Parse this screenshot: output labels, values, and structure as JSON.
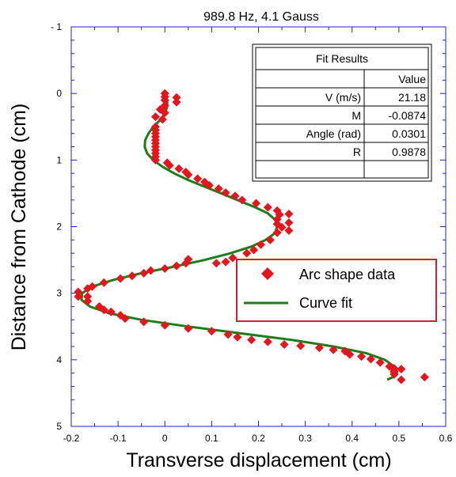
{
  "chart_data": {
    "type": "scatter",
    "title": "989.8 Hz, 4.1 Gauss",
    "xlabel": "Transverse displacement (cm)",
    "ylabel": "Distance from Cathode (cm)",
    "xlim": [
      -0.2,
      0.6
    ],
    "ylim": [
      -1,
      5
    ],
    "y_inverted": true,
    "x_ticks": [
      "-0.2",
      "-0.1",
      "0",
      "0.1",
      "0.2",
      "0.3",
      "0.4",
      "0.5",
      "0.6"
    ],
    "y_ticks": [
      "- 1",
      "0",
      "1",
      "2",
      "3",
      "4",
      "5"
    ],
    "legend_position": "right",
    "series": [
      {
        "name": "Arc shape data",
        "kind": "scatter",
        "marker": "diamond",
        "color": "#e8141b",
        "points": [
          [
            0.0,
            0.0
          ],
          [
            0.0,
            0.05
          ],
          [
            0.025,
            0.06
          ],
          [
            0.0,
            0.1
          ],
          [
            0.025,
            0.13
          ],
          [
            0.0,
            0.18
          ],
          [
            -0.01,
            0.24
          ],
          [
            0.0,
            0.29
          ],
          [
            -0.02,
            0.35
          ],
          [
            -0.005,
            0.39
          ],
          [
            -0.02,
            0.5
          ],
          [
            -0.02,
            0.55
          ],
          [
            -0.02,
            0.6
          ],
          [
            -0.02,
            0.65
          ],
          [
            -0.02,
            0.7
          ],
          [
            -0.02,
            0.75
          ],
          [
            -0.02,
            0.8
          ],
          [
            -0.02,
            0.85
          ],
          [
            -0.02,
            0.9
          ],
          [
            -0.02,
            0.95
          ],
          [
            -0.02,
            1.0
          ],
          [
            0.005,
            1.04
          ],
          [
            0.01,
            1.08
          ],
          [
            0.03,
            1.13
          ],
          [
            0.045,
            1.18
          ],
          [
            0.05,
            1.22
          ],
          [
            0.07,
            1.28
          ],
          [
            0.085,
            1.33
          ],
          [
            0.095,
            1.38
          ],
          [
            0.115,
            1.43
          ],
          [
            0.13,
            1.49
          ],
          [
            0.15,
            1.54
          ],
          [
            0.165,
            1.6
          ],
          [
            0.195,
            1.65
          ],
          [
            0.22,
            1.71
          ],
          [
            0.24,
            1.76
          ],
          [
            0.265,
            1.81
          ],
          [
            0.245,
            1.82
          ],
          [
            0.24,
            1.89
          ],
          [
            0.265,
            1.94
          ],
          [
            0.24,
            1.96
          ],
          [
            0.25,
            2.01
          ],
          [
            0.265,
            2.06
          ],
          [
            0.24,
            2.09
          ],
          [
            0.225,
            2.2
          ],
          [
            0.205,
            2.27
          ],
          [
            0.19,
            2.35
          ],
          [
            0.175,
            2.4
          ],
          [
            0.145,
            2.47
          ],
          [
            0.13,
            2.53
          ],
          [
            0.11,
            2.55
          ],
          [
            0.05,
            2.49
          ],
          [
            0.045,
            2.55
          ],
          [
            0.025,
            2.59
          ],
          [
            0.0,
            2.63
          ],
          [
            -0.03,
            2.66
          ],
          [
            -0.045,
            2.7
          ],
          [
            -0.07,
            2.74
          ],
          [
            -0.095,
            2.78
          ],
          [
            -0.13,
            2.84
          ],
          [
            -0.155,
            2.9
          ],
          [
            -0.165,
            2.93
          ],
          [
            -0.185,
            2.98
          ],
          [
            -0.185,
            3.05
          ],
          [
            -0.165,
            3.05
          ],
          [
            -0.165,
            3.12
          ],
          [
            -0.14,
            3.2
          ],
          [
            -0.13,
            3.25
          ],
          [
            -0.115,
            3.28
          ],
          [
            -0.095,
            3.33
          ],
          [
            -0.085,
            3.38
          ],
          [
            -0.045,
            3.43
          ],
          [
            0.0,
            3.48
          ],
          [
            0.05,
            3.53
          ],
          [
            0.1,
            3.57
          ],
          [
            0.135,
            3.62
          ],
          [
            0.155,
            3.66
          ],
          [
            0.185,
            3.7
          ],
          [
            0.22,
            3.73
          ],
          [
            0.255,
            3.77
          ],
          [
            0.29,
            3.79
          ],
          [
            0.33,
            3.82
          ],
          [
            0.36,
            3.85
          ],
          [
            0.385,
            3.87
          ],
          [
            0.395,
            3.92
          ],
          [
            0.42,
            3.95
          ],
          [
            0.44,
            3.99
          ],
          [
            0.46,
            4.04
          ],
          [
            0.48,
            4.1
          ],
          [
            0.49,
            4.13
          ],
          [
            0.505,
            4.14
          ],
          [
            0.49,
            4.17
          ],
          [
            0.49,
            4.19
          ],
          [
            0.49,
            4.22
          ],
          [
            0.555,
            4.26
          ],
          [
            0.505,
            4.3
          ]
        ]
      },
      {
        "name": "Curve fit",
        "kind": "line",
        "color": "#1a7f1a",
        "points": [
          [
            0.0,
            0.0
          ],
          [
            0.005,
            0.1
          ],
          [
            0.005,
            0.2
          ],
          [
            0.0,
            0.3
          ],
          [
            -0.01,
            0.4
          ],
          [
            -0.025,
            0.5
          ],
          [
            -0.035,
            0.6
          ],
          [
            -0.042,
            0.7
          ],
          [
            -0.043,
            0.8
          ],
          [
            -0.038,
            0.9
          ],
          [
            -0.025,
            1.0
          ],
          [
            -0.005,
            1.1
          ],
          [
            0.02,
            1.2
          ],
          [
            0.05,
            1.3
          ],
          [
            0.085,
            1.4
          ],
          [
            0.12,
            1.5
          ],
          [
            0.155,
            1.6
          ],
          [
            0.19,
            1.7
          ],
          [
            0.22,
            1.8
          ],
          [
            0.236,
            1.9
          ],
          [
            0.24,
            2.0
          ],
          [
            0.235,
            2.1
          ],
          [
            0.215,
            2.2
          ],
          [
            0.185,
            2.3
          ],
          [
            0.14,
            2.4
          ],
          [
            0.085,
            2.5
          ],
          [
            0.02,
            2.6
          ],
          [
            -0.05,
            2.7
          ],
          [
            -0.11,
            2.8
          ],
          [
            -0.155,
            2.9
          ],
          [
            -0.177,
            3.0
          ],
          [
            -0.178,
            3.1
          ],
          [
            -0.16,
            3.2
          ],
          [
            -0.12,
            3.3
          ],
          [
            -0.05,
            3.4
          ],
          [
            0.05,
            3.5
          ],
          [
            0.16,
            3.6
          ],
          [
            0.27,
            3.7
          ],
          [
            0.36,
            3.8
          ],
          [
            0.43,
            3.9
          ],
          [
            0.47,
            4.0
          ],
          [
            0.49,
            4.1
          ],
          [
            0.495,
            4.2
          ],
          [
            0.49,
            4.25
          ],
          [
            0.475,
            4.3
          ]
        ]
      }
    ]
  },
  "fit_table": {
    "title": "Fit Results",
    "value_header": "Value",
    "rows": [
      {
        "label": "V (m/s)",
        "value": "21.18"
      },
      {
        "label": "M",
        "value": "-0.0874"
      },
      {
        "label": "Angle (rad)",
        "value": "0.0301"
      },
      {
        "label": "R",
        "value": "0.9878"
      }
    ]
  },
  "legend": {
    "border_color": "#d42027",
    "items": [
      {
        "label": "Arc shape data",
        "symbol": "diamond",
        "color": "#e8141b"
      },
      {
        "label": "Curve fit",
        "symbol": "line",
        "color": "#1a7f1a"
      }
    ]
  },
  "colors": {
    "axis": "#2020c8",
    "data": "#e8141b",
    "fit": "#1a7f1a"
  }
}
